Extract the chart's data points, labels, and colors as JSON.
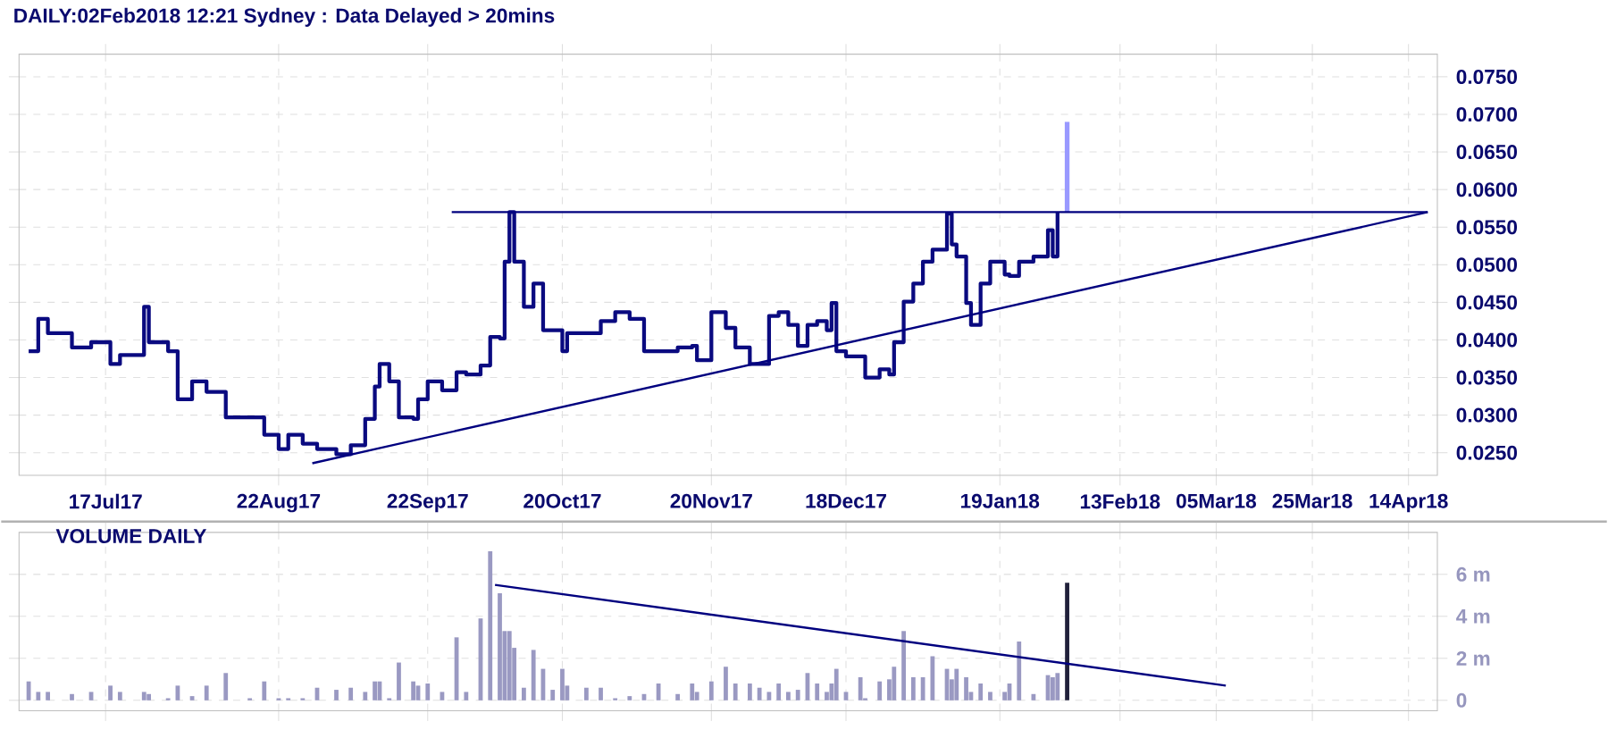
{
  "chart_data": [
    {
      "type": "step",
      "title": "DAILY:02Feb2018 12:21 Sydney : Data Delayed > 20mins",
      "grid": true,
      "xlim": [
        "2017-06-29",
        "2018-04-20"
      ],
      "ylim": [
        0.022,
        0.078
      ],
      "xticks": [
        {
          "value": "2017-07-17",
          "label": "17Jul17"
        },
        {
          "value": "2017-08-22",
          "label": "22Aug17"
        },
        {
          "value": "2017-09-22",
          "label": "22Sep17"
        },
        {
          "value": "2017-10-20",
          "label": "20Oct17"
        },
        {
          "value": "2017-11-20",
          "label": "20Nov17"
        },
        {
          "value": "2017-12-18",
          "label": "18Dec17"
        },
        {
          "value": "2018-01-19",
          "label": "19Jan18"
        },
        {
          "value": "2018-02-13",
          "label": "13Feb18"
        },
        {
          "value": "2018-03-05",
          "label": "05Mar18"
        },
        {
          "value": "2018-03-25",
          "label": "25Mar18"
        },
        {
          "value": "2018-04-14",
          "label": "14Apr18"
        }
      ],
      "yticks": [
        {
          "value": 0.025,
          "label": "0.0250"
        },
        {
          "value": 0.03,
          "label": "0.0300"
        },
        {
          "value": 0.035,
          "label": "0.0350"
        },
        {
          "value": 0.04,
          "label": "0.0400"
        },
        {
          "value": 0.045,
          "label": "0.0450"
        },
        {
          "value": 0.05,
          "label": "0.0500"
        },
        {
          "value": 0.055,
          "label": "0.0550"
        },
        {
          "value": 0.06,
          "label": "0.0600"
        },
        {
          "value": 0.065,
          "label": "0.0650"
        },
        {
          "value": 0.07,
          "label": "0.0700"
        },
        {
          "value": 0.075,
          "label": "0.0750"
        }
      ],
      "x": [
        "2017-07-01",
        "2017-07-03",
        "2017-07-05",
        "2017-07-10",
        "2017-07-14",
        "2017-07-18",
        "2017-07-20",
        "2017-07-25",
        "2017-07-26",
        "2017-07-30",
        "2017-08-01",
        "2017-08-04",
        "2017-08-07",
        "2017-08-11",
        "2017-08-16",
        "2017-08-19",
        "2017-08-22",
        "2017-08-24",
        "2017-08-27",
        "2017-08-30",
        "2017-09-03",
        "2017-09-06",
        "2017-09-09",
        "2017-09-11",
        "2017-09-12",
        "2017-09-14",
        "2017-09-16",
        "2017-09-19",
        "2017-09-20",
        "2017-09-22",
        "2017-09-25",
        "2017-09-28",
        "2017-09-30",
        "2017-10-03",
        "2017-10-05",
        "2017-10-07",
        "2017-10-08",
        "2017-10-09",
        "2017-10-10",
        "2017-10-12",
        "2017-10-14",
        "2017-10-16",
        "2017-10-18",
        "2017-10-20",
        "2017-10-21",
        "2017-10-25",
        "2017-10-28",
        "2017-10-31",
        "2017-11-03",
        "2017-11-06",
        "2017-11-09",
        "2017-11-13",
        "2017-11-16",
        "2017-11-17",
        "2017-11-20",
        "2017-11-23",
        "2017-11-25",
        "2017-11-28",
        "2017-11-30",
        "2017-12-02",
        "2017-12-04",
        "2017-12-06",
        "2017-12-08",
        "2017-12-10",
        "2017-12-12",
        "2017-12-14",
        "2017-12-15",
        "2017-12-16",
        "2017-12-18",
        "2017-12-21",
        "2017-12-22",
        "2017-12-25",
        "2017-12-27",
        "2017-12-28",
        "2017-12-30",
        "2018-01-01",
        "2018-01-03",
        "2018-01-05",
        "2018-01-08",
        "2018-01-09",
        "2018-01-10",
        "2018-01-12",
        "2018-01-13",
        "2018-01-15",
        "2018-01-17",
        "2018-01-20",
        "2018-01-21",
        "2018-01-23",
        "2018-01-26",
        "2018-01-29",
        "2018-01-30",
        "2018-01-31"
      ],
      "series": [
        {
          "color": "#0a0a80",
          "values": [
            0.0385,
            0.0428,
            0.0409,
            0.039,
            0.0397,
            0.0368,
            0.038,
            0.0444,
            0.0397,
            0.0385,
            0.0321,
            0.0345,
            0.0331,
            0.0297,
            0.0297,
            0.0274,
            0.0255,
            0.0274,
            0.0262,
            0.0255,
            0.0248,
            0.026,
            0.0295,
            0.0338,
            0.0368,
            0.0345,
            0.0297,
            0.0295,
            0.0321,
            0.0345,
            0.0333,
            0.0357,
            0.0354,
            0.0366,
            0.0404,
            0.0402,
            0.0504,
            0.057,
            0.0504,
            0.0444,
            0.0475,
            0.0413,
            0.0413,
            0.0385,
            0.0409,
            0.0409,
            0.0425,
            0.0437,
            0.0428,
            0.0385,
            0.0385,
            0.039,
            0.0392,
            0.0373,
            0.0437,
            0.0416,
            0.039,
            0.0368,
            0.0368,
            0.0432,
            0.0437,
            0.042,
            0.0392,
            0.042,
            0.0425,
            0.0413,
            0.0449,
            0.0385,
            0.0378,
            0.0378,
            0.035,
            0.0361,
            0.0354,
            0.0397,
            0.0451,
            0.0475,
            0.0504,
            0.052,
            0.0568,
            0.0527,
            0.0511,
            0.0449,
            0.042,
            0.0475,
            0.0504,
            0.0487,
            0.0485,
            0.0504,
            0.0511,
            0.0546,
            0.0511,
            0.057
          ]
        },
        {
          "type": "line",
          "color": "#9999ff",
          "x": [
            "2018-02-02",
            "2018-02-02"
          ],
          "values": [
            0.057,
            0.069
          ]
        },
        {
          "type": "line",
          "color": "#00007f",
          "x": [
            "2017-09-27",
            "2018-04-18"
          ],
          "values": [
            0.057,
            0.057
          ]
        },
        {
          "type": "line",
          "color": "#00007f",
          "x": [
            "2017-08-29",
            "2018-04-18"
          ],
          "values": [
            0.0236,
            0.057
          ]
        }
      ]
    },
    {
      "type": "bar",
      "title": "VOLUME DAILY",
      "grid": true,
      "tick_labels": "y",
      "xlim": [
        "2017-06-29",
        "2018-04-20"
      ],
      "ylim": [
        -0.5,
        8
      ],
      "xticks": [
        {
          "value": "2017-07-17",
          "label": null
        },
        {
          "value": "2017-08-22",
          "label": null
        },
        {
          "value": "2017-09-22",
          "label": null
        },
        {
          "value": "2017-10-20",
          "label": null
        },
        {
          "value": "2017-11-20",
          "label": null
        },
        {
          "value": "2017-12-18",
          "label": null
        },
        {
          "value": "2018-01-19",
          "label": null
        },
        {
          "value": "2018-02-13",
          "label": null
        },
        {
          "value": "2018-03-05",
          "label": null
        },
        {
          "value": "2018-03-25",
          "label": null
        },
        {
          "value": "2018-04-14",
          "label": null
        }
      ],
      "yticks": [
        0,
        {
          "value": 2,
          "label": "2 m"
        },
        {
          "value": 4,
          "label": "4 m"
        },
        {
          "value": 6,
          "label": "6 m"
        }
      ],
      "x": [
        "2017-07-01",
        "2017-07-03",
        "2017-07-05",
        "2017-07-10",
        "2017-07-14",
        "2017-07-18",
        "2017-07-20",
        "2017-07-25",
        "2017-07-26",
        "2017-07-30",
        "2017-08-01",
        "2017-08-04",
        "2017-08-07",
        "2017-08-11",
        "2017-08-16",
        "2017-08-19",
        "2017-08-22",
        "2017-08-24",
        "2017-08-27",
        "2017-08-30",
        "2017-09-03",
        "2017-09-06",
        "2017-09-09",
        "2017-09-11",
        "2017-09-12",
        "2017-09-14",
        "2017-09-16",
        "2017-09-19",
        "2017-09-20",
        "2017-09-22",
        "2017-09-25",
        "2017-09-28",
        "2017-09-30",
        "2017-10-03",
        "2017-10-05",
        "2017-10-07",
        "2017-10-08",
        "2017-10-09",
        "2017-10-10",
        "2017-10-12",
        "2017-10-14",
        "2017-10-16",
        "2017-10-18",
        "2017-10-20",
        "2017-10-21",
        "2017-10-25",
        "2017-10-28",
        "2017-10-31",
        "2017-11-03",
        "2017-11-06",
        "2017-11-09",
        "2017-11-13",
        "2017-11-16",
        "2017-11-17",
        "2017-11-20",
        "2017-11-23",
        "2017-11-25",
        "2017-11-28",
        "2017-11-30",
        "2017-12-02",
        "2017-12-04",
        "2017-12-06",
        "2017-12-08",
        "2017-12-10",
        "2017-12-12",
        "2017-12-14",
        "2017-12-15",
        "2017-12-16",
        "2017-12-18",
        "2017-12-21",
        "2017-12-22",
        "2017-12-25",
        "2017-12-27",
        "2017-12-28",
        "2017-12-30",
        "2018-01-01",
        "2018-01-03",
        "2018-01-05",
        "2018-01-08",
        "2018-01-09",
        "2018-01-10",
        "2018-01-12",
        "2018-01-13",
        "2018-01-15",
        "2018-01-17",
        "2018-01-20",
        "2018-01-21",
        "2018-01-23",
        "2018-01-26",
        "2018-01-29",
        "2018-01-30",
        "2018-01-31"
      ],
      "series": [
        {
          "color": "#9a99c2",
          "values": [
            0.9,
            0.4,
            0.4,
            0.3,
            0.4,
            0.7,
            0.4,
            0.4,
            0.3,
            0.1,
            0.7,
            0.2,
            0.7,
            1.3,
            0.1,
            0.9,
            0.1,
            0.1,
            0.1,
            0.6,
            0.5,
            0.6,
            0.4,
            0.9,
            0.9,
            0.1,
            1.8,
            0.9,
            0.7,
            0.8,
            0.4,
            3.0,
            0.4,
            3.9,
            7.1,
            5.1,
            3.3,
            3.3,
            2.5,
            0.6,
            2.4,
            1.5,
            0.5,
            1.5,
            0.7,
            0.6,
            0.6,
            0.1,
            0.2,
            0.3,
            0.8,
            0.3,
            0.8,
            0.4,
            0.9,
            1.6,
            0.8,
            0.8,
            0.6,
            0.4,
            0.8,
            0.4,
            0.5,
            1.3,
            0.8,
            0.4,
            0.8,
            1.5,
            0.4,
            1.1,
            0.1,
            0.9,
            1.0,
            1.6,
            3.3,
            1.1,
            1.1,
            2.1,
            1.5,
            1.0,
            1.5,
            1.1,
            0.4,
            0.8,
            0.4,
            0.4,
            0.8,
            2.8,
            0.3,
            1.2,
            1.1,
            1.3
          ]
        },
        {
          "color": "#20203a",
          "x": [
            "2018-02-02"
          ],
          "values": [
            5.6
          ]
        },
        {
          "type": "line",
          "color": "#00007f",
          "x": [
            "2017-10-06",
            "2018-03-07"
          ],
          "values": [
            5.5,
            0.7
          ]
        }
      ]
    }
  ]
}
